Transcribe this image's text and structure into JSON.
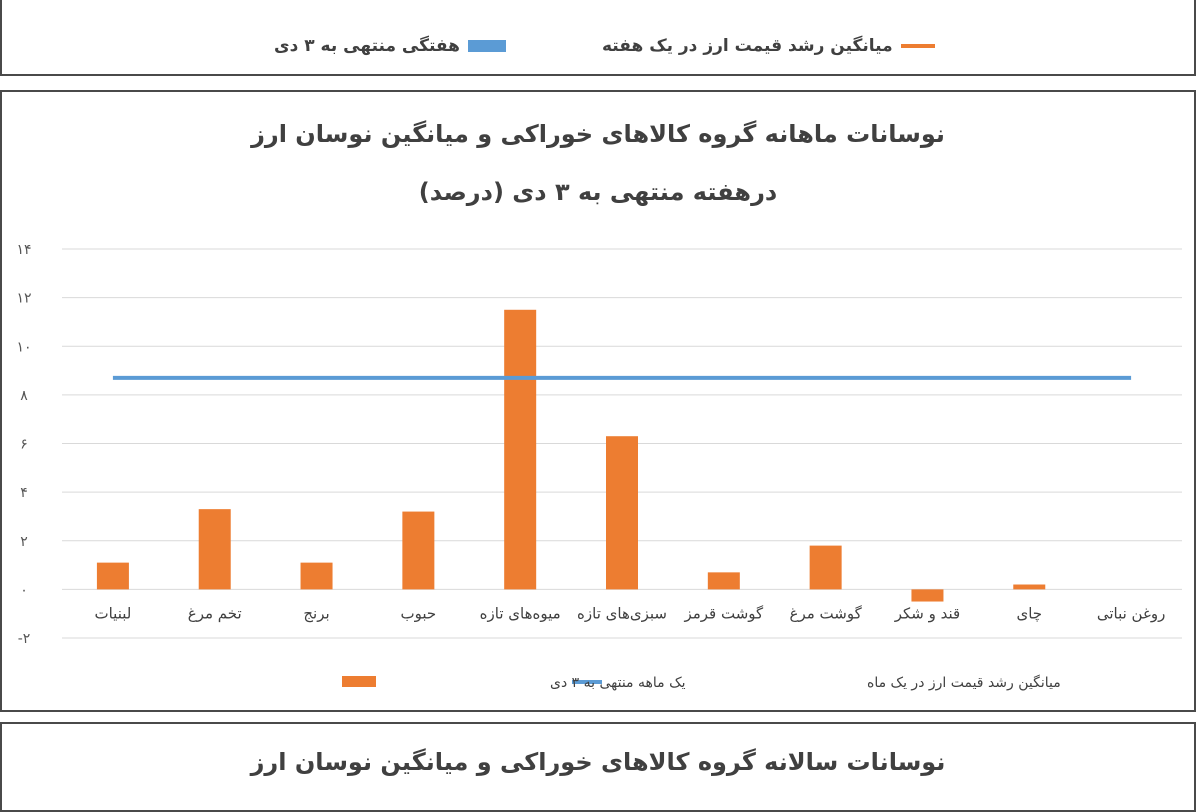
{
  "top_legend": {
    "item_1": {
      "label": "میانگین رشد  قیمت ارز در یک هفته",
      "color": "#ED7D31"
    },
    "item_2": {
      "label": "هفتگی منتهی به ۳ دی",
      "color": "#5B9BD5"
    }
  },
  "chart_data": {
    "type": "bar",
    "title": "نوسانات ماهانه گروه کالاهای خوراکی  و میانگین نوسان ارز",
    "subtitle": "درهفته منتهی به ۳ دی (درصد)",
    "categories": [
      "لبنیات",
      "تخم مرغ",
      "برنج",
      "حبوب",
      "میوه‌های تازه",
      "سبزی‌های تازه",
      "گوشت قرمز",
      "گوشت مرغ",
      "قند و شکر",
      "چای",
      "روغن نباتی"
    ],
    "series": [
      {
        "name": "یک ماهه منتهی به ۳ دی",
        "type": "bar",
        "color": "#ED7D31",
        "values": [
          1.1,
          3.3,
          1.1,
          3.2,
          11.5,
          6.3,
          0.7,
          1.8,
          -0.5,
          0.2,
          0
        ]
      },
      {
        "name": "میانگین رشد  قیمت ارز در یک ماه",
        "type": "line",
        "color": "#5B9BD5",
        "value": 8.7
      }
    ],
    "ylim": [
      -2,
      14
    ],
    "yticks": [
      -2,
      0,
      2,
      4,
      6,
      8,
      10,
      12,
      14
    ],
    "ytick_labels": [
      "-۲",
      "۰",
      "۲",
      "۴",
      "۶",
      "۸",
      "۱۰",
      "۱۲",
      "۱۴"
    ],
    "grid": true,
    "legend_position": "bottom"
  },
  "bottom_chart": {
    "title": "نوسانات سالانه گروه کالاهای خوراکی  و میانگین نوسان ارز"
  }
}
